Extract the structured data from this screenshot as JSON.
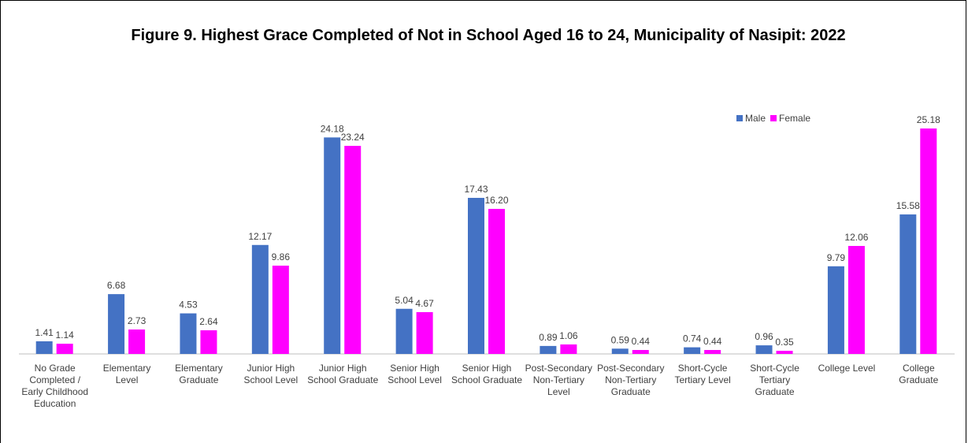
{
  "chart_data": {
    "type": "bar",
    "title": "Figure 9. Highest Grace Completed of Not in School Aged 16 to 24, Municipality of Nasipit: 2022",
    "categories": [
      "No Grade Completed / Early Childhood Education",
      "Elementary Level",
      "Elementary Graduate",
      "Junior High School Level",
      "Junior High School Graduate",
      "Senior High School Level",
      "Senior High School Graduate",
      "Post-Secondary Non-Tertiary Level",
      "Post-Secondary Non-Tertiary Graduate",
      "Short-Cycle Tertiary Level",
      "Short-Cycle Tertiary Graduate",
      "College Level",
      "College Graduate"
    ],
    "series": [
      {
        "name": "Male",
        "color": "#4472c4",
        "values": [
          1.41,
          6.68,
          4.53,
          12.17,
          24.18,
          5.04,
          17.43,
          0.89,
          0.59,
          0.74,
          0.96,
          9.79,
          15.58
        ],
        "value_labels": [
          "1.41",
          "6.68",
          "4.53",
          "12.17",
          "24.18",
          "5.04",
          "17.43",
          "0.89",
          "0.59",
          "0.74",
          "0.96",
          "9.79",
          "15.58"
        ]
      },
      {
        "name": "Female",
        "color": "#ff00ff",
        "values": [
          1.14,
          2.73,
          2.64,
          9.86,
          23.24,
          4.67,
          16.2,
          1.06,
          0.44,
          0.44,
          0.35,
          12.06,
          25.18
        ],
        "value_labels": [
          "1.14",
          "2.73",
          "2.64",
          "9.86",
          "23.24",
          "4.67",
          "16.20",
          "1.06",
          "0.44",
          "0.44",
          "0.35",
          "12.06",
          "25.18"
        ]
      }
    ],
    "legend": "top-right"
  }
}
